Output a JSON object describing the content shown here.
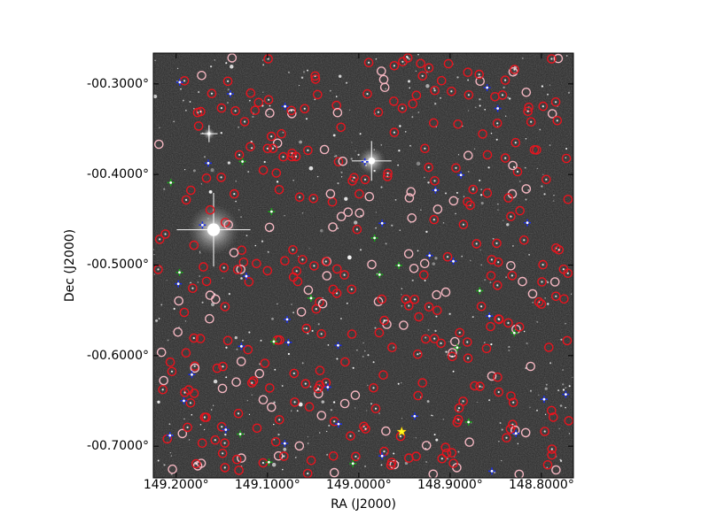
{
  "figure": {
    "xlabel": "RA (J2000)",
    "ylabel": "Dec (J2000)",
    "x_ticks": [
      "149.2000°",
      "149.1000°",
      "149.0000°",
      "148.9000°",
      "148.8000°"
    ],
    "y_ticks": [
      "-00.3000°",
      "-00.4000°",
      "-00.5000°",
      "-00.6000°",
      "-00.7000°"
    ],
    "x_tick_values": [
      149.2,
      149.1,
      149.0,
      148.9,
      148.8
    ],
    "y_tick_values": [
      -0.3,
      -0.4,
      -0.5,
      -0.6,
      -0.7
    ],
    "ra_range": [
      149.225,
      148.765
    ],
    "dec_range": [
      -0.266,
      -0.735
    ],
    "colors": {
      "sky_background": "#262626",
      "circle_red": "#e8141e",
      "circle_pink": "#f4b6c0",
      "cross_blue": "#1a2ee6",
      "cross_green": "#19a319",
      "target_star": "#ffff22"
    },
    "marker_types": [
      "red-circle",
      "pink-circle",
      "blue-cross",
      "green-cross",
      "yellow-star"
    ]
  }
}
